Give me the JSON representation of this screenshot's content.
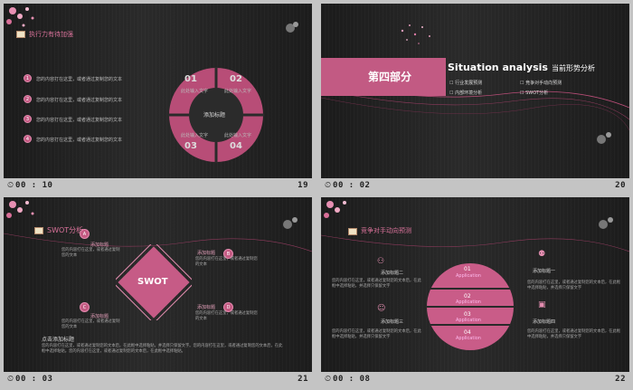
{
  "colors": {
    "accent": "#c85a85",
    "accent_light": "#e7a2bd",
    "bg": "#222222",
    "footer_bg": "#c4c4c4"
  },
  "slides": [
    {
      "title": "执行力有待加强",
      "items": [
        {
          "num": "1",
          "text": "您的内容打在这里，或者通过复制您的文本"
        },
        {
          "num": "2",
          "text": "您的内容打在这里，或者通过复制您的文本"
        },
        {
          "num": "3",
          "text": "您的内容打在这里，或者通过复制您的文本"
        },
        {
          "num": "4",
          "text": "您的内容打在这里，或者通过复制您的文本"
        }
      ],
      "ring": {
        "center": "添加标题",
        "segments": [
          {
            "num": "01",
            "text": "此处输入文字"
          },
          {
            "num": "02",
            "text": "此处输入文字"
          },
          {
            "num": "03",
            "text": "此处输入文字"
          },
          {
            "num": "04",
            "text": "此处输入文字"
          }
        ]
      },
      "time": "00 : 10",
      "slide_num": "19"
    },
    {
      "part": "第四部分",
      "heading": "Situation analysis",
      "heading_cn": "当前形势分析",
      "options": [
        "行业发展预测",
        "竞争对手动向预测",
        "内部环境分析",
        "SWOT分析"
      ],
      "time": "00 : 02",
      "slide_num": "20"
    },
    {
      "title": "SWOT分析",
      "center": "SWOT",
      "corners": [
        {
          "letter": "A",
          "label": "添加标题",
          "text": "您的内容打在这里，或者通过复制您的文本"
        },
        {
          "letter": "B",
          "label": "添加标题",
          "text": "您的内容打在这里，或者通过复制您的文本"
        },
        {
          "letter": "C",
          "label": "添加标题",
          "text": "您的内容打在这里，或者通过复制您的文本"
        },
        {
          "letter": "D",
          "label": "添加标题",
          "text": "您的内容打在这里，或者通过复制您的文本"
        }
      ],
      "subtitle": "点击添加标题",
      "body": "您的内容打在这里，或者通过复制您的文本后，在此框中选择粘贴，并选择只保留文字。您的内容打在这里，或者通过复制您的文本后，在此框中选择粘贴。您的内容打在这里，或者通过复制您的文本后，在此框中选择粘贴。",
      "time": "00 : 03",
      "slide_num": "21"
    },
    {
      "title": "竞争对手动向预测",
      "left": [
        {
          "label": "添加标题二",
          "text": "您的内容打在这里，或者通过复制您的文本后，在此框中选择粘贴，并选择只保留文字"
        },
        {
          "label": "添加标题三",
          "text": "您的内容打在这里，或者通过复制您的文本后，在此框中选择粘贴，并选择只保留文字"
        }
      ],
      "right": [
        {
          "label": "添加标题一",
          "text": "您的内容打在这里，或者通过复制您的文本后，在此框中选择粘贴，并选择只保留文字"
        },
        {
          "label": "添加标题四",
          "text": "您的内容打在这里，或者通过复制您的文本后，在此框中选择粘贴，并选择只保留文字"
        }
      ],
      "bands": [
        {
          "num": "01",
          "text": "Application"
        },
        {
          "num": "02",
          "text": "Application"
        },
        {
          "num": "03",
          "text": "Application"
        },
        {
          "num": "04",
          "text": "Application"
        }
      ],
      "time": "00 : 08",
      "slide_num": "22"
    }
  ]
}
